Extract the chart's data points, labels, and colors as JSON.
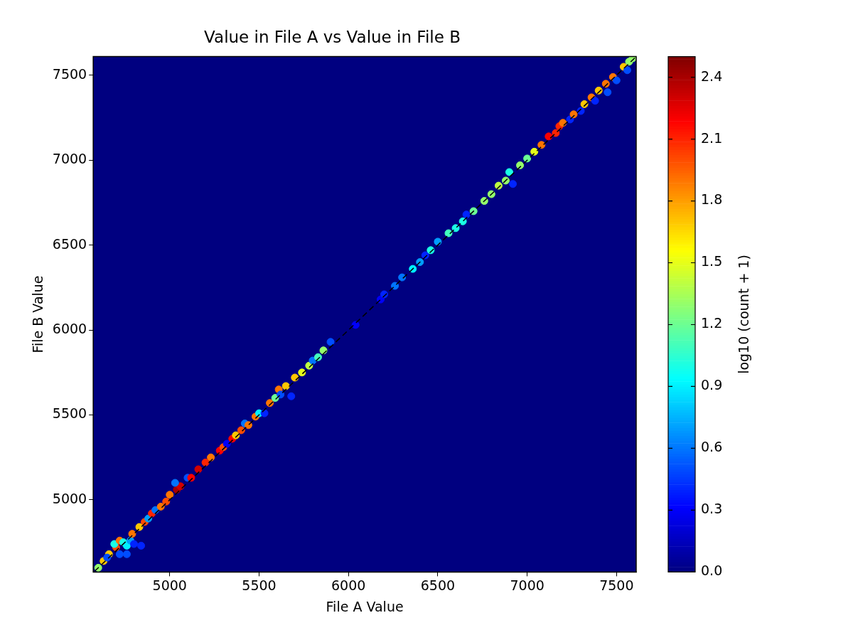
{
  "chart_data": {
    "type": "scatter",
    "title": "Value in File A vs Value in File B",
    "xlabel": "File A Value",
    "ylabel": "File B Value",
    "clabel": "log10 (count + 1)",
    "xlim": [
      4572,
      7610
    ],
    "ylim": [
      4575,
      7610
    ],
    "xticks": [
      5000,
      5500,
      6000,
      6500,
      7000,
      7500
    ],
    "yticks": [
      5000,
      5500,
      6000,
      6500,
      7000,
      7500
    ],
    "clim": [
      0,
      2.5
    ],
    "cticks": [
      {
        "value": 0,
        "label": "0.0"
      },
      {
        "value": 0.3,
        "label": "0.3"
      },
      {
        "value": 0.6,
        "label": "0.6"
      },
      {
        "value": 0.9,
        "label": "0.9"
      },
      {
        "value": 1.2,
        "label": "1.2"
      },
      {
        "value": 1.5,
        "label": "1.5"
      },
      {
        "value": 1.8,
        "label": "1.8"
      },
      {
        "value": 2.1,
        "label": "2.1"
      },
      {
        "value": 2.4,
        "label": "2.4"
      }
    ],
    "grid": false,
    "legend": false,
    "series": [
      {
        "marker": "circle",
        "colors": [
          "#94ff6b",
          "#ffc700",
          "#ffc700",
          "#004dff",
          "#ff4d00",
          "#1affe6",
          "#ff7500",
          "#1affe6",
          "#00f0ff",
          "#009eff",
          "#004dff",
          "#004dff",
          "#0024ff",
          "#0024ff",
          "#ff7500",
          "#ffc700",
          "#ff4d00",
          "#009eff",
          "#ff2400",
          "#0075ff",
          "#ff7500",
          "#ff4d00",
          "#ff7500",
          "#a80000",
          "#d10000",
          "#0075ff",
          "#004dff",
          "#fa0000",
          "#d10000",
          "#ff2400",
          "#ff7500",
          "#fa0000",
          "#ff4d00",
          "#0000fa",
          "#fa0000",
          "#ffc700",
          "#ff4d00",
          "#0075ff",
          "#ff7500",
          "#ff7500",
          "#00f0ff",
          "#0024ff",
          "#ff7500",
          "#6bff94",
          "#ff7500",
          "#004dff",
          "#ffc700",
          "#0024ff",
          "#ffc700",
          "#e6ff1a",
          "#bdff42",
          "#0075ff",
          "#42ffbd",
          "#94ff6b",
          "#004dff",
          "#0000fa",
          "#0000fa",
          "#0024ff",
          "#0075ff",
          "#0075ff",
          "#00f0ff",
          "#009eff",
          "#0024ff",
          "#1affe6",
          "#009eff",
          "#42ffbd",
          "#1affe6",
          "#1affe6",
          "#0024ff",
          "#6bff94",
          "#94ff6b",
          "#94ff6b",
          "#bdff42",
          "#94ff6b",
          "#1affe6",
          "#0024ff",
          "#94ff6b",
          "#6bff94",
          "#e6ff1a",
          "#ff7500",
          "#fa0000",
          "#ff2400",
          "#ff2400",
          "#ff7500",
          "#0024ff",
          "#ff7500",
          "#0024ff",
          "#ffc700",
          "#ff7500",
          "#ffc700",
          "#0024ff",
          "#ff7500",
          "#004dff",
          "#ff7500",
          "#004dff",
          "#ffc700",
          "#94ff6b",
          "#94ff6b",
          "#004dff"
        ],
        "x": [
          4600,
          4630,
          4660,
          4650,
          4700,
          4690,
          4720,
          4740,
          4760,
          4780,
          4720,
          4760,
          4800,
          4840,
          4790,
          4830,
          4860,
          4880,
          4900,
          4920,
          4950,
          4980,
          5000,
          5040,
          5060,
          5030,
          5100,
          5120,
          5160,
          5200,
          5230,
          5280,
          5300,
          5320,
          5350,
          5370,
          5400,
          5420,
          5440,
          5480,
          5500,
          5530,
          5560,
          5590,
          5610,
          5620,
          5650,
          5680,
          5700,
          5740,
          5780,
          5800,
          5830,
          5860,
          5900,
          6040,
          6180,
          6200,
          6260,
          6300,
          6360,
          6400,
          6430,
          6460,
          6500,
          6560,
          6600,
          6640,
          6660,
          6700,
          6760,
          6800,
          6840,
          6880,
          6900,
          6920,
          6960,
          7000,
          7040,
          7080,
          7120,
          7160,
          7180,
          7200,
          7240,
          7260,
          7300,
          7320,
          7360,
          7400,
          7380,
          7440,
          7450,
          7480,
          7500,
          7540,
          7570,
          7590,
          7560
        ],
        "values": [
          4600,
          4640,
          4680,
          4660,
          4720,
          4740,
          4760,
          4750,
          4730,
          4760,
          4680,
          4680,
          4740,
          4730,
          4800,
          4840,
          4870,
          4890,
          4920,
          4940,
          4960,
          4990,
          5030,
          5060,
          5080,
          5100,
          5130,
          5130,
          5180,
          5220,
          5250,
          5290,
          5310,
          5330,
          5360,
          5380,
          5410,
          5450,
          5440,
          5490,
          5510,
          5510,
          5570,
          5600,
          5650,
          5620,
          5670,
          5610,
          5720,
          5750,
          5790,
          5820,
          5840,
          5880,
          5930,
          6030,
          6180,
          6210,
          6260,
          6310,
          6360,
          6400,
          6440,
          6470,
          6520,
          6570,
          6600,
          6640,
          6680,
          6700,
          6760,
          6800,
          6850,
          6880,
          6930,
          6860,
          6970,
          7010,
          7050,
          7090,
          7140,
          7160,
          7200,
          7220,
          7240,
          7270,
          7290,
          7330,
          7370,
          7410,
          7350,
          7450,
          7400,
          7490,
          7470,
          7550,
          7580,
          7600,
          7530
        ],
        "cvalues": [
          1.3,
          1.7,
          1.7,
          0.5,
          2.0,
          1.0,
          1.9,
          1.0,
          0.9,
          0.7,
          0.5,
          0.5,
          0.4,
          0.4,
          1.9,
          1.7,
          2.0,
          0.7,
          2.1,
          0.6,
          1.9,
          2.0,
          1.9,
          2.4,
          2.3,
          0.6,
          0.5,
          2.2,
          2.3,
          2.1,
          1.9,
          2.2,
          2.0,
          0.3,
          2.2,
          1.7,
          2.0,
          0.6,
          1.9,
          1.9,
          0.9,
          0.4,
          1.9,
          1.2,
          1.9,
          0.5,
          1.7,
          0.4,
          1.7,
          1.5,
          1.4,
          0.6,
          1.1,
          1.3,
          0.5,
          0.3,
          0.3,
          0.4,
          0.6,
          0.6,
          0.9,
          0.7,
          0.4,
          1.0,
          0.7,
          1.1,
          1.0,
          1.0,
          0.4,
          1.2,
          1.3,
          1.3,
          1.4,
          1.3,
          1.0,
          0.4,
          1.3,
          1.2,
          1.5,
          1.9,
          2.2,
          2.1,
          2.1,
          1.9,
          0.4,
          1.9,
          0.4,
          1.7,
          1.9,
          1.7,
          0.4,
          1.9,
          0.5,
          1.9,
          0.5,
          1.7,
          1.3,
          1.3,
          0.5
        ]
      },
      {
        "type": "line",
        "x": [
          4580,
          7605
        ],
        "values": [
          4580,
          7605
        ],
        "color": "#000000",
        "line_style": "dashed"
      }
    ]
  }
}
